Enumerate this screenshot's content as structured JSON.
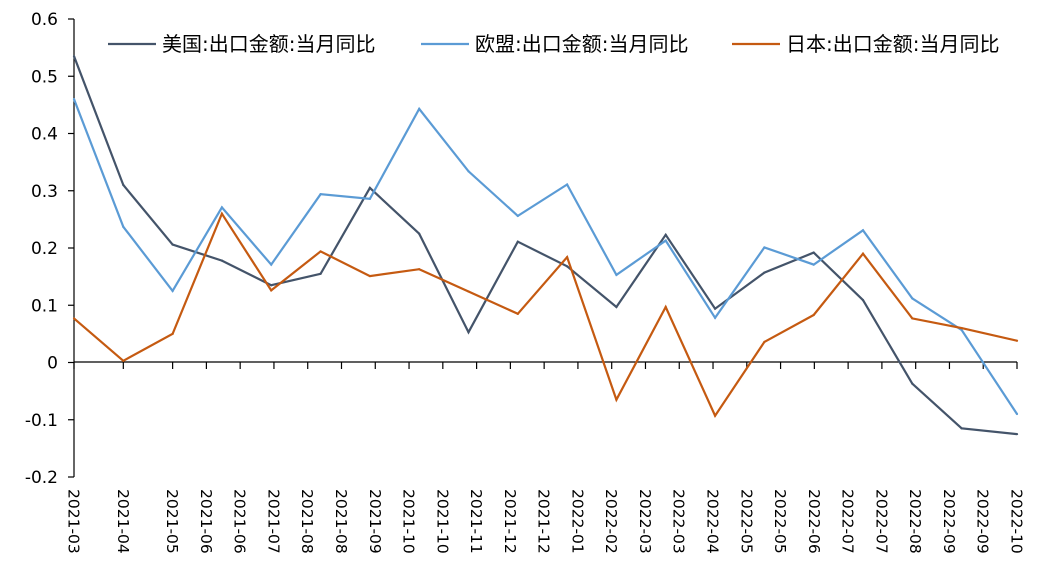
{
  "chart_data": {
    "type": "line",
    "title": "",
    "xlabel": "",
    "ylabel": "",
    "ylim": [
      -0.2,
      0.6
    ],
    "y_ticks": [
      "0.6",
      "0.5",
      "0.4",
      "0.3",
      "0.2",
      "0.1",
      "0",
      "-0.1",
      "-0.2"
    ],
    "y_tick_values": [
      0.6,
      0.5,
      0.4,
      0.3,
      0.2,
      0.1,
      0,
      -0.1,
      -0.2
    ],
    "categories": [
      "2021-03",
      "2021-04",
      "2021-05",
      "2021-06",
      "2021-06",
      "2021-07",
      "2021-08",
      "2021-08",
      "2021-09",
      "2021-10",
      "2021-10",
      "2021-11",
      "2021-12",
      "2021-12",
      "2022-01",
      "2022-02",
      "2022-03",
      "2022-03",
      "2022-04",
      "2022-05",
      "2022-05",
      "2022-06",
      "2022-07",
      "2022-07",
      "2022-08",
      "2022-09",
      "2022-09",
      "2022-10"
    ],
    "x": [
      0,
      1.46,
      2.92,
      3.92,
      4.92,
      5.92,
      6.92,
      7.92,
      8.92,
      9.92,
      10.92,
      11.92,
      12.92,
      13.92,
      14.92,
      15.92,
      16.92,
      17.92,
      18.92,
      19.92,
      20.92,
      21.92,
      22.92,
      23.92,
      24.92,
      25.92,
      26.92,
      27.92
    ],
    "series": [
      {
        "name": "美国:出口金额:当月同比",
        "color": "#44546A",
        "x": [
          0,
          1.46,
          2.92,
          4.38,
          5.84,
          7.3,
          8.76,
          10.22,
          11.68,
          13.14,
          14.6,
          16.06,
          17.52,
          18.98,
          20.44,
          21.9,
          23.36,
          24.82,
          26.28,
          27.92
        ],
        "values": [
          0.535,
          0.31,
          0.206,
          0.178,
          0.135,
          0.155,
          0.305,
          0.225,
          0.053,
          0.211,
          0.168,
          0.097,
          0.223,
          0.094,
          0.157,
          0.192,
          0.109,
          -0.037,
          -0.115,
          -0.125
        ]
      },
      {
        "name": "欧盟:出口金额:当月同比",
        "color": "#5B9BD5",
        "x": [
          0,
          1.46,
          2.92,
          4.38,
          5.84,
          7.3,
          8.76,
          10.22,
          11.68,
          13.14,
          14.6,
          16.06,
          17.52,
          18.98,
          20.44,
          21.9,
          23.36,
          24.82,
          26.28,
          27.92
        ],
        "values": [
          0.46,
          0.237,
          0.125,
          0.271,
          0.171,
          0.294,
          0.286,
          0.443,
          0.334,
          0.256,
          0.311,
          0.153,
          0.213,
          0.078,
          0.201,
          0.171,
          0.231,
          0.112,
          0.057,
          -0.09
        ]
      },
      {
        "name": "日本:出口金额:当月同比",
        "color": "#C55A11",
        "x": [
          0,
          1.46,
          2.92,
          4.38,
          5.84,
          7.3,
          8.76,
          10.22,
          11.68,
          13.14,
          14.6,
          16.06,
          17.52,
          18.98,
          20.44,
          21.9,
          23.36,
          24.82,
          26.28,
          27.92
        ],
        "values": [
          0.077,
          0.003,
          0.05,
          0.26,
          0.126,
          0.194,
          0.151,
          0.163,
          0.124,
          0.085,
          0.184,
          -0.065,
          0.097,
          -0.093,
          0.036,
          0.083,
          0.19,
          0.077,
          0.06,
          0.038
        ]
      }
    ],
    "legend_position": "top",
    "grid": false
  }
}
